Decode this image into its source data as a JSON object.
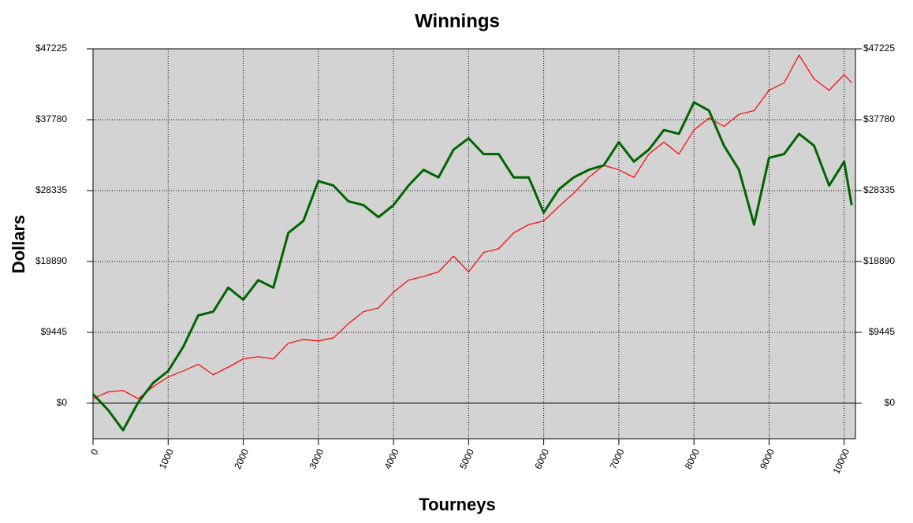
{
  "chart_data": {
    "type": "line",
    "title": "Winnings",
    "x_label": "Tourneys",
    "y_label": "Dollars",
    "x": [
      0,
      200,
      400,
      600,
      800,
      1000,
      1200,
      1400,
      1600,
      1800,
      2000,
      2200,
      2400,
      2600,
      2800,
      3000,
      3200,
      3400,
      3600,
      3800,
      4000,
      4200,
      4400,
      4600,
      4800,
      5000,
      5200,
      5400,
      5600,
      5800,
      6000,
      6200,
      6400,
      6600,
      6800,
      7000,
      7200,
      7400,
      7600,
      7800,
      8000,
      8200,
      8400,
      8600,
      8800,
      9000,
      9200,
      9400,
      9600,
      9800,
      10000,
      10100
    ],
    "series": [
      {
        "color": "#ff0000",
        "width": 1.2,
        "values": [
          600,
          1500,
          1700,
          600,
          2200,
          3500,
          4300,
          5200,
          3800,
          4800,
          5900,
          6200,
          5900,
          8000,
          8500,
          8300,
          8700,
          10600,
          12200,
          12700,
          14800,
          16400,
          16900,
          17500,
          19600,
          17500,
          20100,
          20600,
          22700,
          23800,
          24300,
          26200,
          28000,
          30100,
          31700,
          31100,
          30100,
          33200,
          34800,
          33200,
          36400,
          38000,
          36900,
          38500,
          39000,
          41700,
          42700,
          46400,
          43200,
          41700,
          43800,
          42700
        ]
      },
      {
        "color": "#006400",
        "width": 3,
        "values": [
          1200,
          -900,
          -3600,
          100,
          2700,
          4300,
          7500,
          11700,
          12200,
          15400,
          13800,
          16400,
          15400,
          22700,
          24300,
          29600,
          29000,
          26900,
          26400,
          24800,
          26400,
          29000,
          31100,
          30100,
          33800,
          35300,
          33200,
          33200,
          30100,
          30100,
          25400,
          28500,
          30100,
          31100,
          31700,
          34800,
          32200,
          33800,
          36400,
          35900,
          40100,
          39000,
          34300,
          31100,
          23800,
          32700,
          33200,
          35900,
          34300,
          29000,
          32200,
          26400
        ]
      }
    ],
    "xlim": [
      0,
      10150
    ],
    "xticks": [
      0,
      1000,
      2000,
      3000,
      4000,
      5000,
      6000,
      7000,
      8000,
      9000,
      10000
    ],
    "ylim": [
      -4730,
      47225
    ],
    "yticks": [
      {
        "value": 0,
        "label": "$0"
      },
      {
        "value": 9445,
        "label": "$9445"
      },
      {
        "value": 18890,
        "label": "$18890"
      },
      {
        "value": 28335,
        "label": "$28335"
      },
      {
        "value": 37780,
        "label": "$37780"
      },
      {
        "value": 47225,
        "label": "$47225"
      }
    ],
    "grid": true,
    "plot_background": "#d3d3d3"
  }
}
